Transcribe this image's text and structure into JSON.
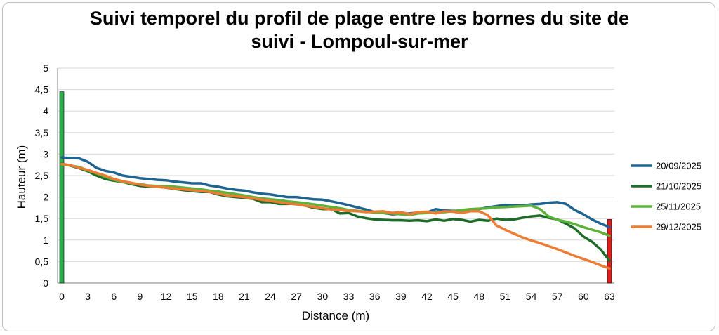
{
  "chart_data": {
    "type": "line",
    "title_line1": "Suivi temporel du profil de plage entre les bornes du site de",
    "title_line2": "suivi - Lompoul-sur-mer",
    "xlabel": "Distance (m)",
    "ylabel": "Hauteur (m)",
    "xlim": [
      0,
      63
    ],
    "ylim": [
      0,
      5
    ],
    "x_ticks": [
      "0",
      "3",
      "6",
      "9",
      "12",
      "15",
      "18",
      "21",
      "24",
      "27",
      "30",
      "33",
      "36",
      "39",
      "42",
      "45",
      "48",
      "51",
      "54",
      "57",
      "60",
      "63"
    ],
    "y_ticks": [
      "0",
      "0,5",
      "1",
      "1,5",
      "2",
      "2,5",
      "3",
      "3,5",
      "4",
      "4,5",
      "5"
    ],
    "grid": "horizontal",
    "legend_position": "right",
    "markers": [
      {
        "x": 0,
        "value": 4.45,
        "color": "#2ab04b"
      },
      {
        "x": 63,
        "value": 1.48,
        "color": "#e81b1b"
      }
    ],
    "series": [
      {
        "name": "20/09/2025",
        "color": "#1f6391",
        "x": [
          0,
          1,
          2,
          3,
          4,
          5,
          6,
          7,
          8,
          9,
          10,
          11,
          12,
          13,
          14,
          15,
          16,
          17,
          18,
          19,
          20,
          21,
          22,
          23,
          24,
          25,
          26,
          27,
          28,
          29,
          30,
          31,
          32,
          33,
          34,
          35,
          36,
          37,
          38,
          39,
          40,
          41,
          42,
          43,
          44,
          45,
          46,
          47,
          48,
          49,
          50,
          51,
          52,
          53,
          54,
          55,
          56,
          57,
          58,
          59,
          60,
          61,
          62,
          63
        ],
        "y": [
          2.92,
          2.91,
          2.9,
          2.82,
          2.68,
          2.61,
          2.57,
          2.5,
          2.47,
          2.44,
          2.42,
          2.4,
          2.39,
          2.36,
          2.34,
          2.32,
          2.32,
          2.27,
          2.24,
          2.2,
          2.17,
          2.15,
          2.11,
          2.08,
          2.06,
          2.03,
          2.0,
          2.0,
          1.97,
          1.95,
          1.94,
          1.9,
          1.86,
          1.81,
          1.76,
          1.71,
          1.65,
          1.63,
          1.6,
          1.61,
          1.62,
          1.64,
          1.64,
          1.72,
          1.69,
          1.68,
          1.69,
          1.7,
          1.72,
          1.76,
          1.79,
          1.82,
          1.81,
          1.8,
          1.83,
          1.84,
          1.87,
          1.88,
          1.84,
          1.7,
          1.6,
          1.48,
          1.38,
          1.3
        ]
      },
      {
        "name": "21/10/2025",
        "color": "#1d6b28",
        "x": [
          0,
          1,
          2,
          3,
          4,
          5,
          6,
          7,
          8,
          9,
          10,
          11,
          12,
          13,
          14,
          15,
          16,
          17,
          18,
          19,
          20,
          21,
          22,
          23,
          24,
          25,
          26,
          27,
          28,
          29,
          30,
          31,
          32,
          33,
          34,
          35,
          36,
          37,
          38,
          39,
          40,
          41,
          42,
          43,
          44,
          45,
          46,
          47,
          48,
          49,
          50,
          51,
          52,
          53,
          54,
          55,
          56,
          57,
          58,
          59,
          60,
          61,
          62,
          63
        ],
        "y": [
          2.78,
          2.73,
          2.67,
          2.6,
          2.5,
          2.42,
          2.38,
          2.35,
          2.3,
          2.26,
          2.24,
          2.24,
          2.22,
          2.19,
          2.16,
          2.14,
          2.12,
          2.12,
          2.06,
          2.02,
          2.0,
          1.98,
          1.96,
          1.88,
          1.88,
          1.84,
          1.84,
          1.85,
          1.8,
          1.75,
          1.72,
          1.72,
          1.62,
          1.63,
          1.55,
          1.51,
          1.48,
          1.47,
          1.46,
          1.46,
          1.45,
          1.46,
          1.44,
          1.48,
          1.45,
          1.49,
          1.47,
          1.43,
          1.47,
          1.45,
          1.5,
          1.47,
          1.48,
          1.52,
          1.55,
          1.57,
          1.52,
          1.48,
          1.38,
          1.27,
          1.08,
          0.96,
          0.78,
          0.52
        ]
      },
      {
        "name": "25/11/2025",
        "color": "#5db23a",
        "x": [
          0,
          1,
          2,
          3,
          4,
          5,
          6,
          7,
          8,
          9,
          10,
          11,
          12,
          13,
          14,
          15,
          16,
          17,
          18,
          19,
          20,
          21,
          22,
          23,
          24,
          25,
          26,
          27,
          28,
          29,
          30,
          31,
          32,
          33,
          34,
          35,
          36,
          37,
          38,
          39,
          40,
          41,
          42,
          43,
          44,
          45,
          46,
          47,
          48,
          49,
          50,
          51,
          52,
          53,
          54,
          55,
          56,
          57,
          58,
          59,
          60,
          61,
          62,
          63
        ],
        "y": [
          2.77,
          2.73,
          2.7,
          2.62,
          2.55,
          2.47,
          2.4,
          2.35,
          2.32,
          2.3,
          2.27,
          2.26,
          2.26,
          2.24,
          2.22,
          2.2,
          2.18,
          2.15,
          2.13,
          2.1,
          2.07,
          2.04,
          2.0,
          1.97,
          1.95,
          1.93,
          1.9,
          1.88,
          1.86,
          1.83,
          1.8,
          1.77,
          1.74,
          1.7,
          1.68,
          1.66,
          1.64,
          1.63,
          1.62,
          1.6,
          1.58,
          1.62,
          1.63,
          1.64,
          1.65,
          1.67,
          1.7,
          1.72,
          1.73,
          1.74,
          1.76,
          1.77,
          1.78,
          1.79,
          1.8,
          1.72,
          1.55,
          1.47,
          1.43,
          1.37,
          1.3,
          1.24,
          1.18,
          1.1
        ]
      },
      {
        "name": "29/12/2025",
        "color": "#ed7b32",
        "x": [
          0,
          1,
          2,
          3,
          4,
          5,
          6,
          7,
          8,
          9,
          10,
          11,
          12,
          13,
          14,
          15,
          16,
          17,
          18,
          19,
          20,
          21,
          22,
          23,
          24,
          25,
          26,
          27,
          28,
          29,
          30,
          31,
          32,
          33,
          34,
          35,
          36,
          37,
          38,
          39,
          40,
          41,
          42,
          43,
          44,
          45,
          46,
          47,
          48,
          49,
          50,
          51,
          52,
          53,
          54,
          55,
          56,
          57,
          58,
          59,
          60,
          61,
          62,
          63
        ],
        "y": [
          2.77,
          2.74,
          2.68,
          2.63,
          2.56,
          2.5,
          2.42,
          2.37,
          2.33,
          2.29,
          2.26,
          2.24,
          2.22,
          2.2,
          2.18,
          2.16,
          2.14,
          2.12,
          2.08,
          2.04,
          2.02,
          2.0,
          1.97,
          1.94,
          1.91,
          1.88,
          1.85,
          1.83,
          1.8,
          1.77,
          1.74,
          1.71,
          1.7,
          1.68,
          1.67,
          1.65,
          1.66,
          1.67,
          1.63,
          1.65,
          1.6,
          1.65,
          1.66,
          1.62,
          1.67,
          1.66,
          1.63,
          1.67,
          1.67,
          1.58,
          1.34,
          1.24,
          1.15,
          1.06,
          0.99,
          0.93,
          0.86,
          0.79,
          0.71,
          0.63,
          0.56,
          0.49,
          0.41,
          0.34
        ]
      }
    ]
  }
}
